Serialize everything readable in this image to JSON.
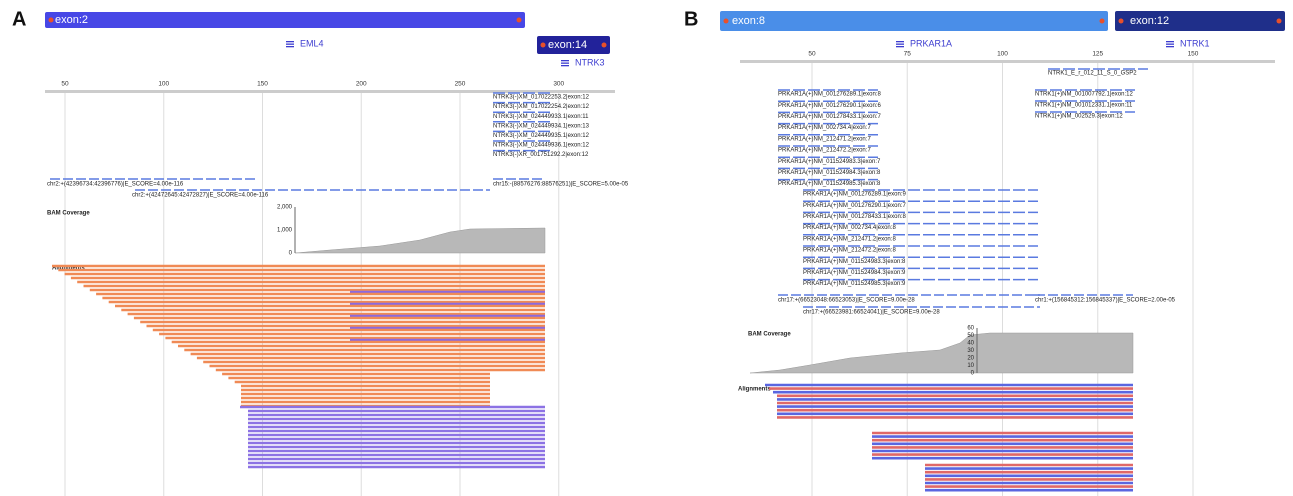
{
  "panels": [
    {
      "label": "A",
      "exons": [
        "exon:2",
        "exon:14"
      ],
      "genes": [
        "EML4",
        "NTRK3"
      ],
      "ruler": [
        50,
        100,
        150,
        200,
        250,
        300
      ],
      "transcript_groups": [
        [
          "NTRK3(-)XM_017022253.2|exon:12",
          "NTRK3(-)XM_017022254.2|exon:12",
          "NTRK3(-)XM_024449933.1|exon:11",
          "NTRK3(-)XM_024449934.1|exon:13",
          "NTRK3(-)XM_024449935.1|exon:12",
          "NTRK3(-)XM_024449936.1|exon:12",
          "NTRK3(-)XR_001751292.2|exon:12"
        ]
      ],
      "split_reads": [
        "chr2:+(42396734:42396776)|E_SCORE=4.00e-116",
        "chr2:+(42472645:42472827)|E_SCORE=4.00e-116",
        "chr15:-(88576276:88576251)|E_SCORE=5.00e-05"
      ],
      "coverage_title": "BAM Coverage",
      "coverage_ticks": [
        "2,000",
        "1,000",
        "0"
      ],
      "alignments_title": "Alignments"
    },
    {
      "label": "B",
      "exons": [
        "exon:8",
        "exon:12"
      ],
      "genes": [
        "PRKAR1A",
        "NTRK1"
      ],
      "ruler": [
        50,
        75,
        100,
        125,
        150
      ],
      "transcript_groups": [
        [
          "NTRK1_E_r_012_11_S_0_GSP2"
        ],
        [
          "NTRK1(+)NM_001007792.1|exon:12",
          "NTRK1(+)NM_001012331.1|exon:11",
          "NTRK1(+)NM_002529.3|exon:12"
        ],
        [
          "PRKAR1A(+)NM_001276289.1|exon:8",
          "PRKAR1A(+)NM_001276290.1|exon:6",
          "PRKAR1A(+)NM_001278433.1|exon:7",
          "PRKAR1A(+)NM_002734.4|exon:7",
          "PRKAR1A(+)NM_212471.2|exon:7",
          "PRKAR1A(+)NM_212472.2|exon:7",
          "PRKAR1A(+)NM_011524983.3|exon:7",
          "PRKAR1A(+)NM_011524984.3|exon:8",
          "PRKAR1A(+)NM_011524985.3|exon:8"
        ],
        [
          "PRKAR1A(+)NM_001276289.1|exon:9",
          "PRKAR1A(+)NM_001276290.1|exon:7",
          "PRKAR1A(+)NM_001278433.1|exon:8",
          "PRKAR1A(+)NM_002734.4|exon:8",
          "PRKAR1A(+)NM_212471.2|exon:8",
          "PRKAR1A(+)NM_212472.2|exon:8",
          "PRKAR1A(+)NM_011524983.3|exon:8",
          "PRKAR1A(+)NM_011524984.3|exon:9",
          "PRKAR1A(+)NM_011524985.3|exon:9"
        ]
      ],
      "split_reads": [
        "chr17:+(66523048:66523053)|E_SCORE=9.00e-28",
        "chr17:+(66523981:66524041)|E_SCORE=9.00e-28",
        "chr1:+(156845312:156845337)|E_SCORE=2.00e-05"
      ],
      "coverage_title": "BAM Coverage",
      "coverage_ticks": [
        "60",
        "50",
        "40",
        "30",
        "20",
        "10",
        "0"
      ],
      "alignments_title": "Alignments"
    }
  ]
}
